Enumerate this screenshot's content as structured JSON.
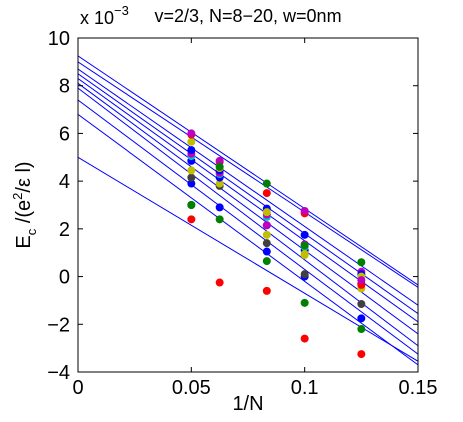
{
  "chart_data": {
    "type": "scatter",
    "title": "v=2/3, N=8−20, w=0nm",
    "xlabel": "1/N",
    "ylabel": {
      "prefix": "E",
      "sub": "c",
      "mid": " /(e",
      "sup": "2",
      "suffix": "/ε l)"
    },
    "y_multiplier": {
      "base": "x 10",
      "exponent": "−3"
    },
    "xlim": [
      0,
      0.15
    ],
    "ylim": [
      -4,
      10
    ],
    "x_ticks": [
      0,
      0.05,
      0.1,
      0.15
    ],
    "x_tick_labels": [
      "0",
      "0.05",
      "0.1",
      "0.15"
    ],
    "y_ticks": [
      -4,
      -2,
      0,
      2,
      4,
      6,
      8,
      10
    ],
    "y_tick_labels": [
      "−4",
      "−2",
      "0",
      "2",
      "4",
      "6",
      "8",
      "10"
    ],
    "x": [
      0.05,
      0.0625,
      0.0833,
      0.1,
      0.125
    ],
    "series": [
      {
        "color": "#ff0000",
        "values": [
          2.4,
          -0.25,
          -0.6,
          -2.6,
          -3.25
        ]
      },
      {
        "color": "#008000",
        "values": [
          3.0,
          2.4,
          0.65,
          -1.1,
          -2.2
        ]
      },
      {
        "color": "#0000ff",
        "values": [
          3.9,
          2.9,
          1.05,
          0.0,
          -1.75
        ]
      },
      {
        "color": "#404040",
        "values": [
          4.15,
          3.8,
          1.4,
          0.1,
          -1.15
        ]
      },
      {
        "color": "#bfbf00",
        "values": [
          4.45,
          3.9,
          1.75,
          0.9,
          -0.5
        ]
      },
      {
        "color": "#0000ff",
        "values": [
          4.85,
          4.15,
          2.15,
          1.1,
          -0.3
        ]
      },
      {
        "color": "#00bfbf",
        "values": [
          5.05,
          4.3,
          2.5,
          1.25,
          0.05
        ]
      },
      {
        "color": "#bf00bf",
        "values": [
          5.15,
          4.35,
          2.6,
          1.35,
          0.2
        ]
      },
      {
        "color": "#0000ff",
        "values": [
          5.3,
          4.45,
          2.85,
          1.75,
          0.1
        ]
      },
      {
        "color": "#bfbf00",
        "values": [
          5.65,
          4.55,
          2.7,
          0.95,
          0.0
        ]
      },
      {
        "color": "#ff0000",
        "values": [
          5.95,
          4.8,
          3.5,
          2.65,
          -0.35
        ]
      },
      {
        "color": "#bf00bf",
        "values": [
          6.0,
          4.85,
          2.15,
          2.75,
          -0.15
        ]
      },
      {
        "color": "#008000",
        "values": [
          3.0,
          4.6,
          3.9,
          1.3,
          0.6
        ]
      }
    ],
    "fit_lines": [
      {
        "color": "#0000ff",
        "intercept": 5.0,
        "slope": -57.0
      },
      {
        "color": "#0000ff",
        "intercept": 6.8,
        "slope": -70.0
      },
      {
        "color": "#0000ff",
        "intercept": 7.4,
        "slope": -71.0
      },
      {
        "color": "#0000ff",
        "intercept": 7.9,
        "slope": -72.0
      },
      {
        "color": "#0000ff",
        "intercept": 8.1,
        "slope": -70.0
      },
      {
        "color": "#0000ff",
        "intercept": 8.3,
        "slope": -68.0
      },
      {
        "color": "#0000ff",
        "intercept": 8.5,
        "slope": -67.0
      },
      {
        "color": "#0000ff",
        "intercept": 8.7,
        "slope": -66.0
      },
      {
        "color": "#0000ff",
        "intercept": 9.0,
        "slope": -63.0
      },
      {
        "color": "#0000ff",
        "intercept": 9.25,
        "slope": -64.0
      }
    ],
    "grid": false,
    "legend": "none"
  }
}
